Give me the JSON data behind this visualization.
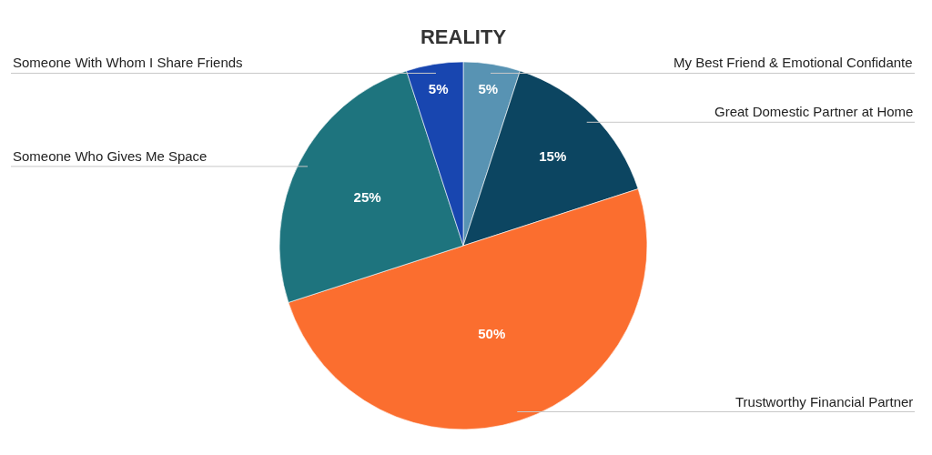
{
  "chart_data": {
    "type": "pie",
    "title": "REALITY",
    "categories": [
      "My Best Friend & Emotional Confidante",
      "Great Domestic Partner at Home",
      "Trustworthy Financial Partner",
      "Someone Who Gives Me Space",
      "Someone With Whom I Share Friends"
    ],
    "values": [
      5,
      15,
      50,
      25,
      5
    ],
    "value_labels": [
      "5%",
      "15%",
      "50%",
      "25%",
      "5%"
    ],
    "colors": [
      "#5893b3",
      "#0c4561",
      "#fb6e2f",
      "#1e747e",
      "#1846b0"
    ],
    "legend": false
  }
}
